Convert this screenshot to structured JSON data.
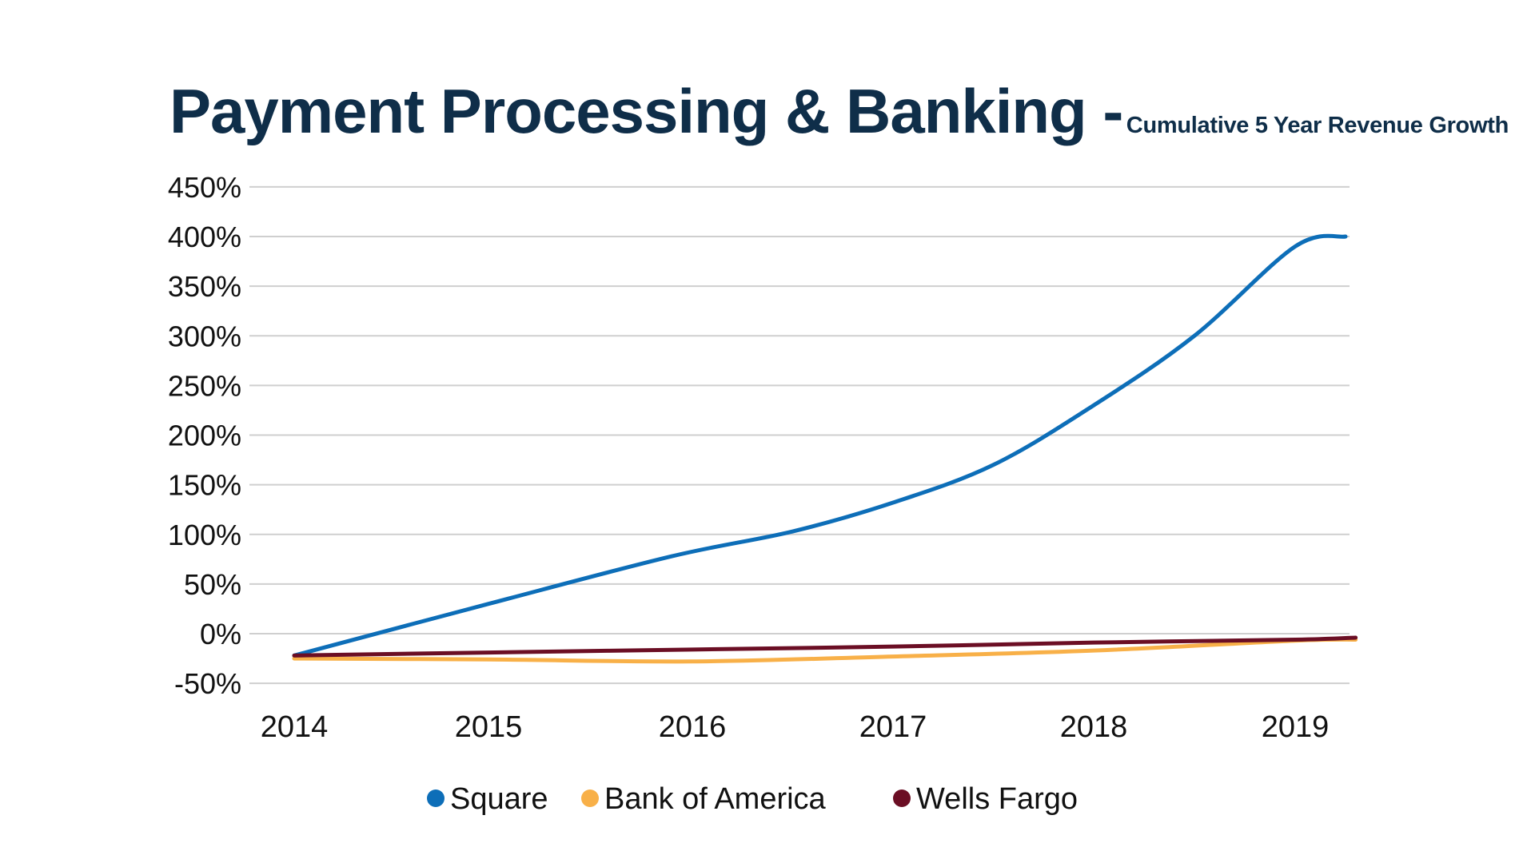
{
  "chart_data": {
    "type": "line",
    "title": "Payment Processing & Banking -",
    "subtitle": "Cumulative 5 Year Revenue Growth",
    "xlabel": "",
    "ylabel": "",
    "x": [
      2014,
      2015,
      2016,
      2017,
      2018,
      2019
    ],
    "x_tick_labels": [
      "2014",
      "2015",
      "2016",
      "2017",
      "2018",
      "2019"
    ],
    "y_ticks": [
      -50,
      0,
      50,
      100,
      150,
      200,
      250,
      300,
      350,
      400,
      450
    ],
    "y_tick_labels": [
      "-50%",
      "0%",
      "50%",
      "100%",
      "150%",
      "200%",
      "250%",
      "300%",
      "350%",
      "400%",
      "450%"
    ],
    "ylim": [
      -50,
      450
    ],
    "grid": true,
    "legend_position": "bottom",
    "series": [
      {
        "name": "Square",
        "color": "#0d6eb8",
        "x": [
          2014,
          2015,
          2015.9,
          2016.5,
          2017,
          2017.5,
          2018,
          2018.5,
          2019,
          2019.25
        ],
        "values": [
          -22,
          30,
          78,
          103,
          132,
          170,
          230,
          300,
          390,
          400
        ]
      },
      {
        "name": "Bank of America",
        "color": "#f8b048",
        "x": [
          2014,
          2015,
          2016,
          2017,
          2018,
          2019,
          2019.3
        ],
        "values": [
          -25,
          -26,
          -28,
          -23,
          -17,
          -7,
          -6
        ]
      },
      {
        "name": "Wells Fargo",
        "color": "#6b0e24",
        "x": [
          2014,
          2015,
          2016,
          2017,
          2018,
          2019,
          2019.3
        ],
        "values": [
          -22,
          -19,
          -16,
          -13,
          -9,
          -6,
          -4
        ]
      }
    ]
  }
}
